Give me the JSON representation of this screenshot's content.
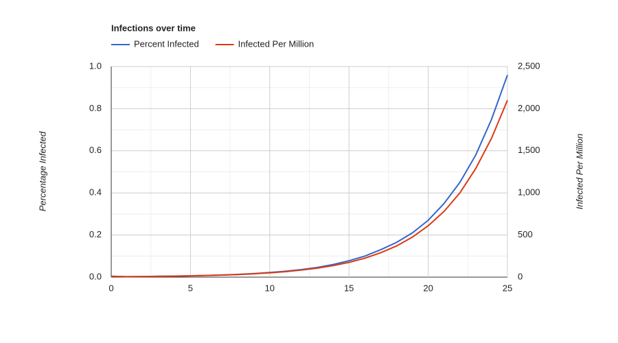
{
  "chart_data": {
    "type": "line",
    "title": "Infections over time",
    "x": [
      0,
      1,
      2,
      3,
      4,
      5,
      6,
      7,
      8,
      9,
      10,
      11,
      12,
      13,
      14,
      15,
      16,
      17,
      18,
      19,
      20,
      21,
      22,
      23,
      24,
      25
    ],
    "series": [
      {
        "name": "Percent Infected",
        "color": "#3366cc",
        "values": [
          0.004,
          0.002,
          0.003,
          0.004,
          0.005,
          0.006,
          0.008,
          0.01,
          0.013,
          0.017,
          0.022,
          0.028,
          0.036,
          0.046,
          0.06,
          0.078,
          0.1,
          0.13,
          0.165,
          0.21,
          0.27,
          0.35,
          0.45,
          0.58,
          0.75,
          0.96
        ]
      },
      {
        "name": "Infected Per Million",
        "color": "#dc3912",
        "axis": "y2",
        "values": [
          10,
          5,
          7,
          9,
          11,
          15,
          19,
          24,
          31,
          40,
          51,
          65,
          84,
          107,
          137,
          175,
          225,
          290,
          370,
          475,
          610,
          780,
          1000,
          1290,
          1650,
          2100
        ]
      }
    ],
    "xlim": [
      0,
      25
    ],
    "xticks": [
      0,
      5,
      10,
      15,
      20,
      25
    ],
    "ylim": [
      0,
      1
    ],
    "yticks": [
      {
        "value": 0,
        "label": "0.0"
      },
      0.2,
      0.4,
      0.6,
      0.8,
      {
        "value": 1,
        "label": "1.0"
      }
    ],
    "y2lim": [
      0,
      2500
    ],
    "y2ticks": [
      0,
      500,
      {
        "value": 1000,
        "label": "1,000"
      },
      {
        "value": 1500,
        "label": "1,500"
      },
      {
        "value": 2000,
        "label": "2,000"
      },
      {
        "value": 2500,
        "label": "2,500"
      }
    ],
    "ylabel": "Percentage Infected",
    "y2label": "Infected Per Million",
    "grid": true,
    "minor_grid": true,
    "legend": "top"
  }
}
